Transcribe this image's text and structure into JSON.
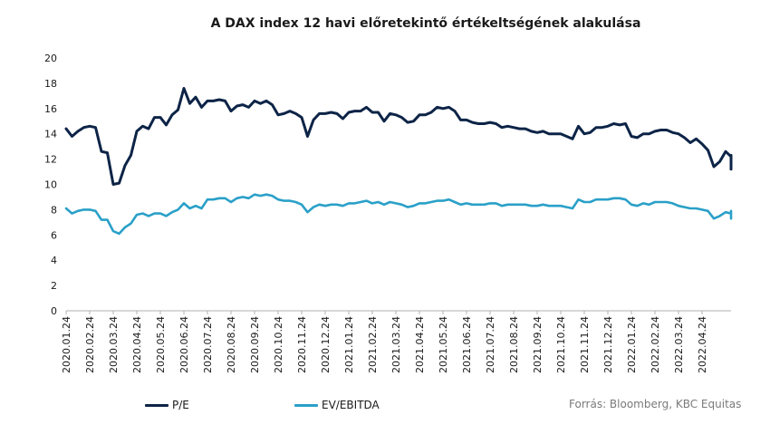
{
  "title": "A DAX index 12 havi előretekintő értékeltségének alakulása",
  "source": "Forrás: Bloomberg, KBC Equitas",
  "colors": {
    "pe": "#0d2447",
    "ev": "#2aa0c8",
    "axis": "#b0b0b0"
  },
  "chart_data": {
    "type": "line",
    "title": "A DAX index 12 havi előretekintő értékeltségének alakulása",
    "ylim": [
      0,
      20
    ],
    "y_ticks": [
      0,
      2,
      4,
      6,
      8,
      10,
      12,
      14,
      16,
      18,
      20
    ],
    "x_tick_labels": [
      "2020.01.24",
      "2020.02.24",
      "2020.03.24",
      "2020.04.24",
      "2020.05.24",
      "2020.06.24",
      "2020.07.24",
      "2020.08.24",
      "2020.09.24",
      "2020.10.24",
      "2020.11.24",
      "2020.12.24",
      "2021.01.24",
      "2021.02.24",
      "2021.03.24",
      "2021.04.24",
      "2021.05.24",
      "2021.06.24",
      "2021.07.24",
      "2021.08.24",
      "2021.09.24",
      "2021.10.24",
      "2021.11.24",
      "2021.12.24",
      "2022.01.24",
      "2022.02.24",
      "2022.03.24",
      "2022.04.24"
    ],
    "grid": false,
    "legend_position": "bottom-left",
    "x_step_months": 0.25,
    "series": [
      {
        "name": "P/E",
        "color": "#0d2447",
        "values": [
          14.4,
          13.8,
          14.2,
          14.5,
          14.6,
          14.5,
          12.6,
          12.5,
          10.0,
          10.1,
          11.5,
          12.3,
          14.2,
          14.6,
          14.4,
          15.3,
          15.3,
          14.7,
          15.5,
          15.9,
          17.6,
          16.4,
          16.9,
          16.1,
          16.6,
          16.6,
          16.7,
          16.6,
          15.8,
          16.2,
          16.3,
          16.1,
          16.6,
          16.4,
          16.6,
          16.3,
          15.5,
          15.6,
          15.8,
          15.6,
          15.3,
          13.8,
          15.1,
          15.6,
          15.6,
          15.7,
          15.6,
          15.2,
          15.7,
          15.8,
          15.8,
          16.1,
          15.7,
          15.7,
          15.0,
          15.6,
          15.5,
          15.3,
          14.9,
          15.0,
          15.5,
          15.5,
          15.7,
          16.1,
          16.0,
          16.1,
          15.8,
          15.1,
          15.1,
          14.9,
          14.8,
          14.8,
          14.9,
          14.8,
          14.5,
          14.6,
          14.5,
          14.4,
          14.4,
          14.2,
          14.1,
          14.2,
          14.0,
          14.0,
          14.0,
          13.8,
          13.6,
          14.6,
          14.0,
          14.1,
          14.5,
          14.5,
          14.6,
          14.8,
          14.7,
          14.8,
          13.8,
          13.7,
          14.0,
          14.0,
          14.2,
          14.3,
          14.3,
          14.1,
          14.0,
          13.7,
          13.3,
          13.6,
          13.2,
          12.7,
          11.4,
          11.8,
          12.6,
          12.2,
          12.3,
          12.1,
          12.0,
          12.0,
          11.9,
          11.2,
          11.3,
          11.4
        ]
      },
      {
        "name": "EV/EBITDA",
        "color": "#2aa0c8",
        "values": [
          8.1,
          7.7,
          7.9,
          8.0,
          8.0,
          7.9,
          7.2,
          7.2,
          6.3,
          6.1,
          6.6,
          6.9,
          7.6,
          7.7,
          7.5,
          7.7,
          7.7,
          7.5,
          7.8,
          8.0,
          8.5,
          8.1,
          8.3,
          8.1,
          8.8,
          8.8,
          8.9,
          8.9,
          8.6,
          8.9,
          9.0,
          8.9,
          9.2,
          9.1,
          9.2,
          9.1,
          8.8,
          8.7,
          8.7,
          8.6,
          8.4,
          7.8,
          8.2,
          8.4,
          8.3,
          8.4,
          8.4,
          8.3,
          8.5,
          8.5,
          8.6,
          8.7,
          8.5,
          8.6,
          8.4,
          8.6,
          8.5,
          8.4,
          8.2,
          8.3,
          8.5,
          8.5,
          8.6,
          8.7,
          8.7,
          8.8,
          8.6,
          8.4,
          8.5,
          8.4,
          8.4,
          8.4,
          8.5,
          8.5,
          8.3,
          8.4,
          8.4,
          8.4,
          8.4,
          8.3,
          8.3,
          8.4,
          8.3,
          8.3,
          8.3,
          8.2,
          8.1,
          8.8,
          8.6,
          8.6,
          8.8,
          8.8,
          8.8,
          8.9,
          8.9,
          8.8,
          8.4,
          8.3,
          8.5,
          8.4,
          8.6,
          8.6,
          8.6,
          8.5,
          8.3,
          8.2,
          8.1,
          8.1,
          8.0,
          7.9,
          7.3,
          7.5,
          7.8,
          7.7,
          7.9,
          7.8,
          7.7,
          7.7,
          7.6,
          7.3,
          7.4,
          7.4
        ]
      }
    ]
  }
}
